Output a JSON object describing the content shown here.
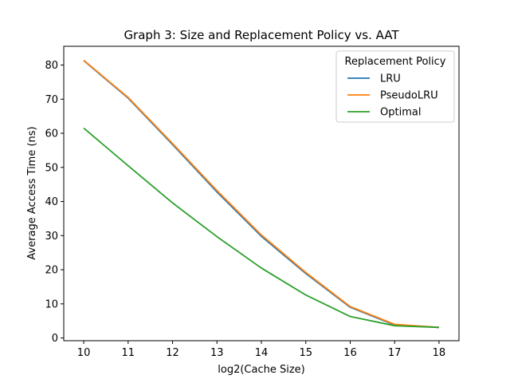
{
  "chart_data": {
    "type": "line",
    "title": "Graph 3: Size and Replacement Policy vs. AAT",
    "xlabel": "log2(Cache Size)",
    "ylabel": "Average Access Time (ns)",
    "x": [
      10,
      11,
      12,
      13,
      14,
      15,
      16,
      17,
      18
    ],
    "xlim": [
      9.55,
      18.45
    ],
    "ylim": [
      -0.8,
      85.5
    ],
    "xticks": [
      10,
      11,
      12,
      13,
      14,
      15,
      16,
      17,
      18
    ],
    "yticks": [
      0,
      10,
      20,
      30,
      40,
      50,
      60,
      70,
      80
    ],
    "legend_title": "Replacement Policy",
    "legend_position": "upper-right",
    "grid": false,
    "series": [
      {
        "name": "LRU",
        "color": "#1f77b4",
        "values": [
          81.3,
          70.3,
          56.7,
          42.8,
          29.8,
          18.9,
          9.0,
          3.8,
          3.1
        ]
      },
      {
        "name": "PseudoLRU",
        "color": "#ff7f0e",
        "values": [
          81.4,
          70.5,
          57.0,
          43.2,
          30.2,
          19.2,
          9.2,
          4.0,
          3.1
        ]
      },
      {
        "name": "Optimal",
        "color": "#2ca02c",
        "values": [
          61.5,
          50.5,
          39.6,
          29.7,
          20.5,
          12.6,
          6.3,
          3.6,
          3.1
        ]
      }
    ]
  }
}
